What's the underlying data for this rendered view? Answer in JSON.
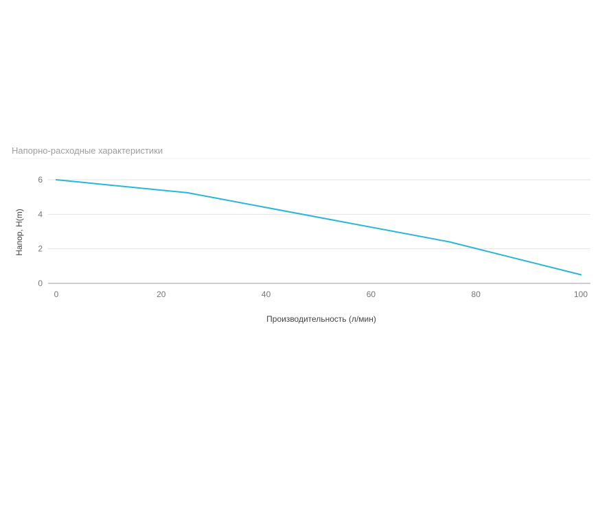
{
  "chart_data": {
    "type": "line",
    "title": "Напорно-расходные характеристики",
    "xlabel": "Производительность (л/мин)",
    "ylabel": "Напор, H(m)",
    "xlim": [
      0,
      100
    ],
    "ylim": [
      0,
      6
    ],
    "x_ticks": [
      0,
      20,
      40,
      60,
      80,
      100
    ],
    "y_ticks": [
      0,
      2,
      4,
      6
    ],
    "grid": true,
    "legend": "none",
    "series": [
      {
        "color": "#29b6dd",
        "x": [
          0,
          25,
          75,
          100
        ],
        "y": [
          6.0,
          5.25,
          2.4,
          0.5
        ]
      }
    ]
  }
}
